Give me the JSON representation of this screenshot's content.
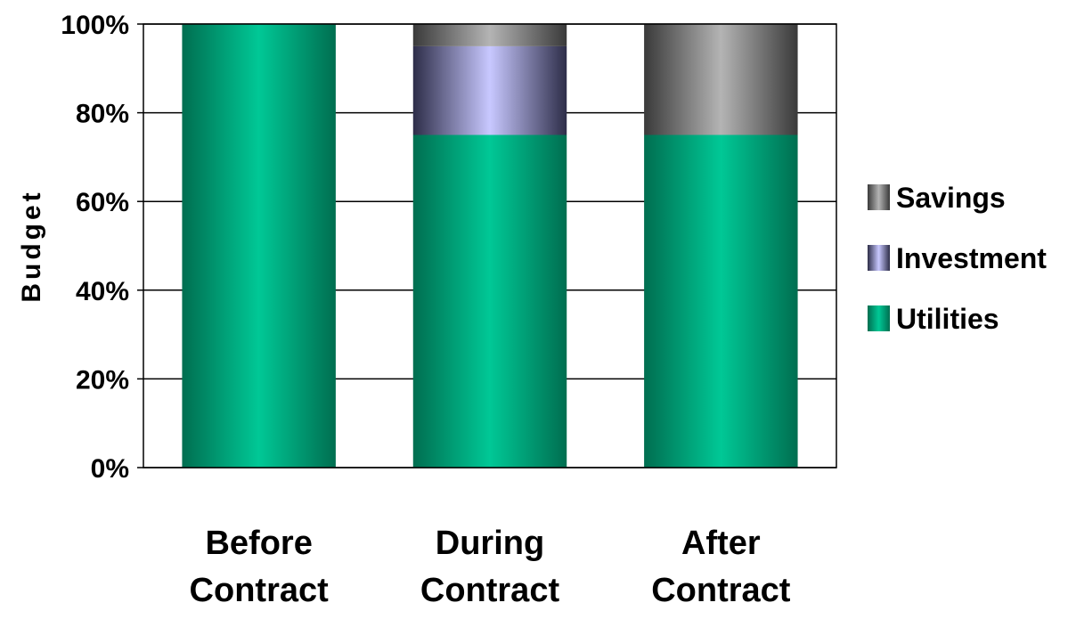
{
  "chart_data": {
    "type": "bar",
    "stacked": true,
    "categories": [
      [
        "Before",
        "Contract"
      ],
      [
        "During",
        "Contract"
      ],
      [
        "After",
        "Contract"
      ]
    ],
    "series": [
      {
        "name": "Utilities",
        "values": [
          100,
          75,
          75
        ],
        "colors": [
          "#006e50",
          "#00c896",
          "#006e50"
        ]
      },
      {
        "name": "Investment",
        "values": [
          0,
          20,
          0
        ],
        "colors": [
          "#2d2d48",
          "#c8c8ff",
          "#2d2d48"
        ]
      },
      {
        "name": "Savings",
        "values": [
          0,
          5,
          25
        ],
        "colors": [
          "#3a3a3a",
          "#b4b4b4",
          "#3a3a3a"
        ]
      }
    ],
    "legend_order": [
      "Savings",
      "Investment",
      "Utilities"
    ],
    "ylabel": "Budget",
    "xlabel": "",
    "ylim": [
      0,
      100
    ],
    "yticks": [
      "0%",
      "20%",
      "40%",
      "60%",
      "80%",
      "100%"
    ],
    "grid": true,
    "legend_position": "right"
  }
}
